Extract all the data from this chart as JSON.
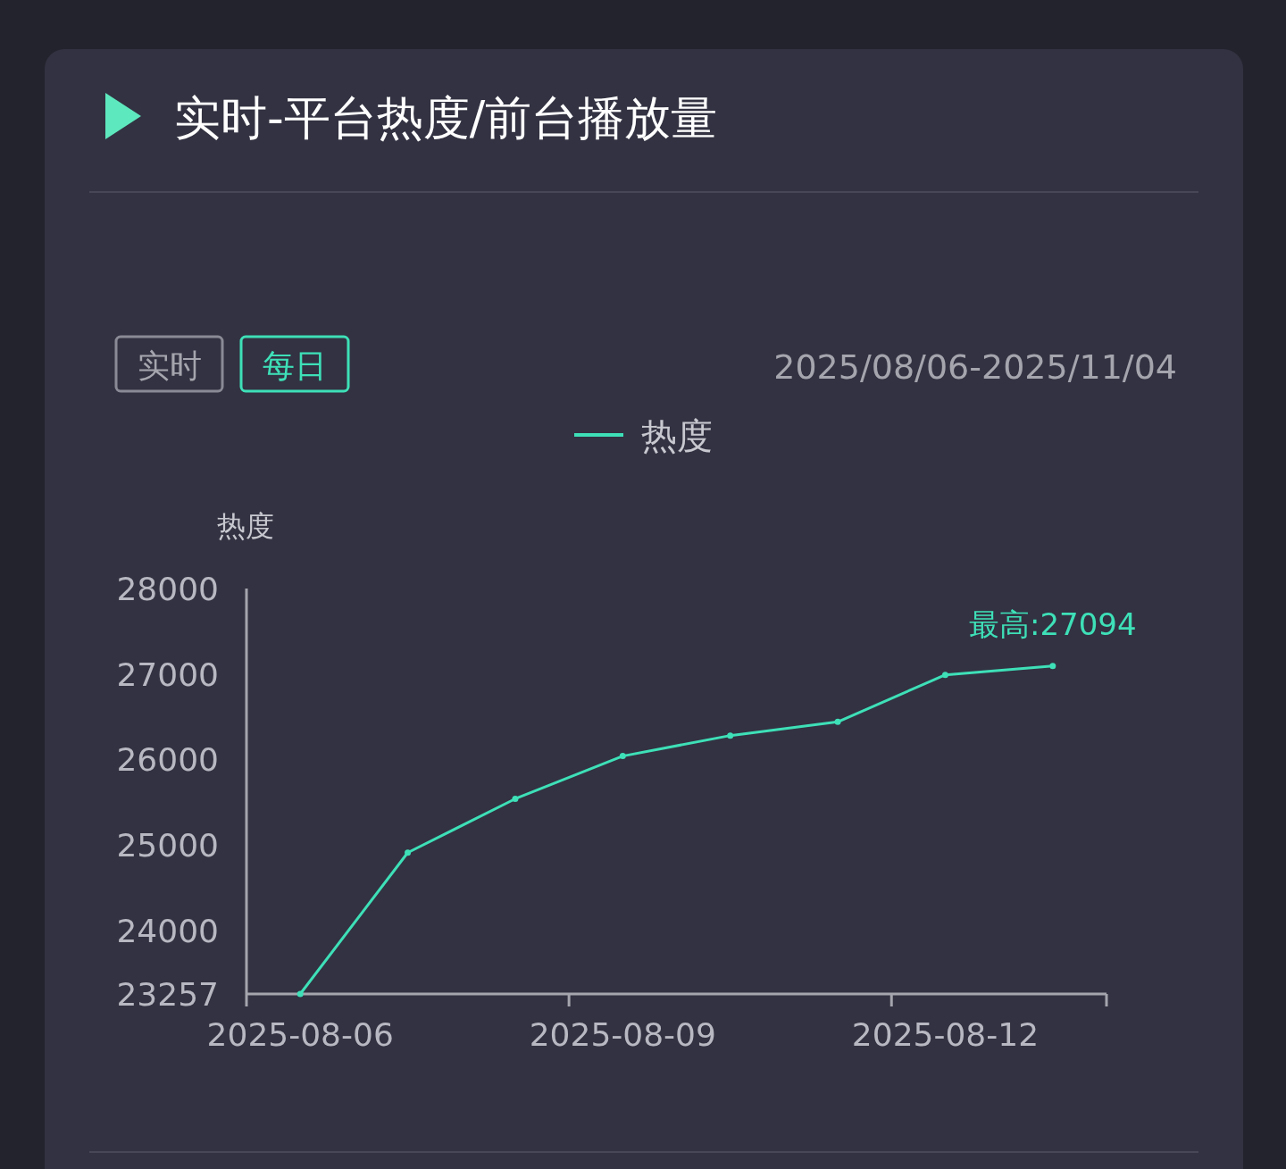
{
  "chart_data": {
    "type": "line",
    "title": "实时-平台热度/前台播放量",
    "ylabel": "热度",
    "categories": [
      "2025-08-06",
      null,
      null,
      "2025-08-09",
      null,
      null,
      "2025-08-12",
      null
    ],
    "series": [
      {
        "name": "热度",
        "color": "#3ee0b8",
        "values": [
          23257,
          24910,
          25540,
          26040,
          26280,
          26440,
          26990,
          27094
        ]
      }
    ],
    "ylim": [
      23257,
      28000
    ],
    "yticks": [
      23257,
      24000,
      25000,
      26000,
      27000,
      28000
    ],
    "marker": "circle",
    "legend": "top",
    "grid": false,
    "annotations": [
      "实时",
      "每日",
      "2025/08/06-2025/11/04",
      {
        "text": "最高:27094",
        "y": 27094
      }
    ]
  }
}
